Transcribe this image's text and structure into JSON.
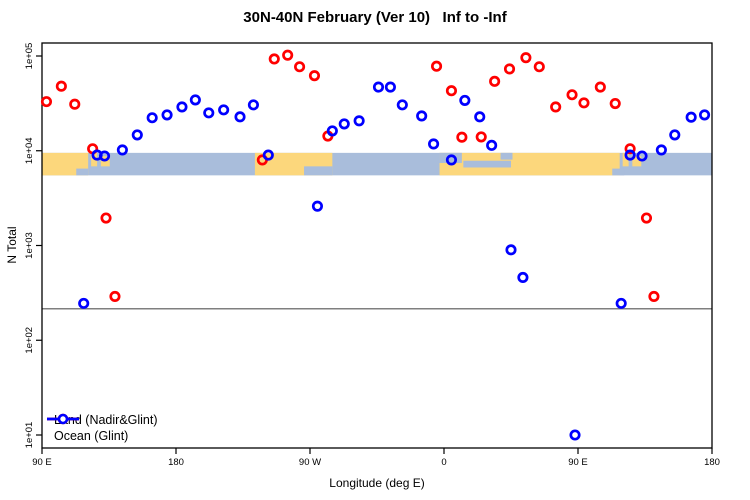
{
  "title": "30N-40N February (Ver 10)   Inf to -Inf",
  "legend": {
    "items": [
      {
        "label": "Land (Nadir&Glint)",
        "color": "#FF0000"
      },
      {
        "label": "Ocean (Glint)",
        "color": "#0000FF"
      }
    ]
  },
  "chart_data": {
    "type": "scatter",
    "title": "30N-40N February (Ver 10)   Inf to -Inf",
    "xlabel": "Longitude (deg E)",
    "ylabel": "N Total",
    "y_scale": "log10",
    "ylim": [
      10,
      100000
    ],
    "x_axis_span_deg": 450,
    "x_ticks": [
      {
        "label": "90 E",
        "deg": 0
      },
      {
        "label": "180",
        "deg": 90
      },
      {
        "label": "90 W",
        "deg": 180
      },
      {
        "label": "0",
        "deg": 270
      },
      {
        "label": "90 E",
        "deg": 360
      },
      {
        "label": "180",
        "deg": 450
      }
    ],
    "y_ticks": [
      {
        "label": "1e+05",
        "value": 100000
      },
      {
        "label": "1e+04",
        "value": 10000
      },
      {
        "label": "1e+03",
        "value": 1000
      },
      {
        "label": "1e+02",
        "value": 100
      },
      {
        "label": "1e+01",
        "value": 10
      }
    ],
    "threshold_line": {
      "value": 215,
      "color": "#7F7F7F"
    },
    "map_band": {
      "y_top_value": 9500,
      "y_bottom_value": 5500,
      "ocean_color": "#A9BDDB",
      "land_color": "#FCD77C",
      "land_segments": [
        [
          0,
          31,
          0,
          1
        ],
        [
          33,
          37,
          0,
          0.6
        ],
        [
          39.5,
          45.5,
          0.15,
          0.6
        ],
        [
          143,
          195,
          0,
          1
        ],
        [
          267,
          388,
          0,
          1
        ],
        [
          390,
          394,
          0,
          0.6
        ],
        [
          396.5,
          402.5,
          0.15,
          0.6
        ]
      ],
      "ocean_overlays": [
        [
          23,
          31,
          0.7,
          1
        ],
        [
          176,
          195,
          0.6,
          1
        ],
        [
          267,
          282,
          0,
          0.45
        ],
        [
          283,
          315,
          0.35,
          0.65
        ],
        [
          308,
          316,
          0,
          0.3
        ],
        [
          383,
          391,
          0.7,
          1
        ]
      ]
    },
    "series": [
      {
        "name": "Land (Nadir&Glint)",
        "color": "#FF0000",
        "points": [
          [
            3,
            33000
          ],
          [
            13,
            48000
          ],
          [
            22,
            31000
          ],
          [
            34,
            10500
          ],
          [
            43,
            1950
          ],
          [
            49,
            290
          ],
          [
            148,
            8000
          ],
          [
            156,
            93000
          ],
          [
            165,
            102000
          ],
          [
            173,
            77000
          ],
          [
            183,
            62000
          ],
          [
            192,
            14300
          ],
          [
            265,
            78000
          ],
          [
            275,
            43000
          ],
          [
            282,
            13900
          ],
          [
            295,
            14000
          ],
          [
            304,
            54000
          ],
          [
            314,
            73000
          ],
          [
            325,
            96000
          ],
          [
            334,
            77000
          ],
          [
            345,
            29000
          ],
          [
            356,
            39000
          ],
          [
            364,
            32000
          ],
          [
            375,
            47000
          ],
          [
            385,
            31500
          ],
          [
            395,
            10500
          ],
          [
            406,
            1950
          ],
          [
            411,
            290
          ]
        ]
      },
      {
        "name": "Ocean (Glint)",
        "color": "#0000FF",
        "points": [
          [
            28,
            245
          ],
          [
            37,
            9000
          ],
          [
            42,
            8800
          ],
          [
            54,
            10200
          ],
          [
            64,
            14700
          ],
          [
            74,
            22300
          ],
          [
            84,
            23900
          ],
          [
            94,
            29000
          ],
          [
            103,
            34400
          ],
          [
            112,
            25100
          ],
          [
            122,
            27000
          ],
          [
            133,
            22800
          ],
          [
            142,
            30500
          ],
          [
            152,
            9000
          ],
          [
            185,
            2600
          ],
          [
            195,
            16200
          ],
          [
            203,
            19200
          ],
          [
            213,
            20700
          ],
          [
            226,
            47000
          ],
          [
            234,
            47000
          ],
          [
            242,
            30500
          ],
          [
            255,
            23300
          ],
          [
            263,
            11800
          ],
          [
            275,
            8000
          ],
          [
            284,
            34000
          ],
          [
            294,
            22800
          ],
          [
            302,
            11400
          ],
          [
            315,
            900
          ],
          [
            323,
            460
          ],
          [
            358,
            10
          ],
          [
            389,
            245
          ],
          [
            395,
            9000
          ],
          [
            403,
            8800
          ],
          [
            416,
            10200
          ],
          [
            425,
            14700
          ],
          [
            436,
            22600
          ],
          [
            445,
            23900
          ]
        ]
      }
    ]
  }
}
